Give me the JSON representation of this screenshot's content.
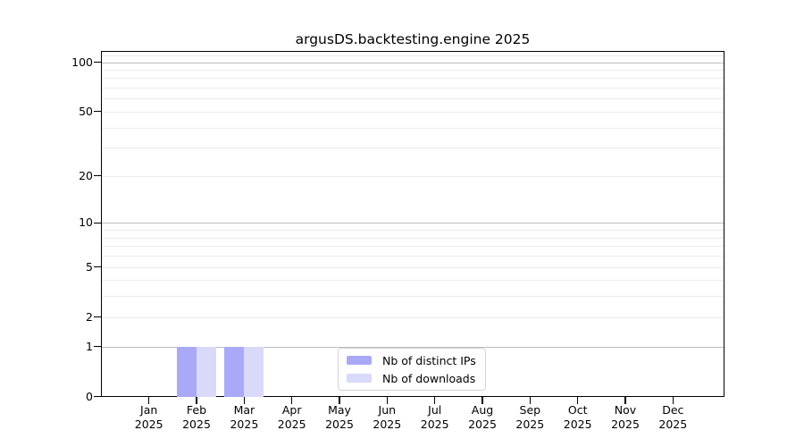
{
  "chart_data": {
    "type": "bar",
    "title": "argusDS.backtesting.engine 2025",
    "categories": [
      {
        "month": "Jan",
        "year": "2025"
      },
      {
        "month": "Feb",
        "year": "2025"
      },
      {
        "month": "Mar",
        "year": "2025"
      },
      {
        "month": "Apr",
        "year": "2025"
      },
      {
        "month": "May",
        "year": "2025"
      },
      {
        "month": "Jun",
        "year": "2025"
      },
      {
        "month": "Jul",
        "year": "2025"
      },
      {
        "month": "Aug",
        "year": "2025"
      },
      {
        "month": "Sep",
        "year": "2025"
      },
      {
        "month": "Oct",
        "year": "2025"
      },
      {
        "month": "Nov",
        "year": "2025"
      },
      {
        "month": "Dec",
        "year": "2025"
      }
    ],
    "series": [
      {
        "name": "Nb of distinct IPs",
        "color": "#a9a9f8",
        "values": [
          0,
          1,
          1,
          0,
          0,
          0,
          0,
          0,
          0,
          0,
          0,
          0
        ]
      },
      {
        "name": "Nb of downloads",
        "color": "#d9d9fa",
        "values": [
          0,
          1,
          1,
          0,
          0,
          0,
          0,
          0,
          0,
          0,
          0,
          0
        ]
      }
    ],
    "y_axis": {
      "scale": "log1p",
      "major_ticks": [
        100,
        50,
        20,
        10,
        5,
        2,
        1,
        0
      ],
      "emphasized_gridlines": [
        1,
        10,
        100
      ],
      "minor_gridlines": [
        3,
        4,
        6,
        7,
        8,
        9,
        30,
        40,
        60,
        70,
        80,
        90,
        110
      ],
      "ylim": [
        0,
        117
      ],
      "grid": "on"
    },
    "legend_position": "lower center (inside plot)"
  }
}
